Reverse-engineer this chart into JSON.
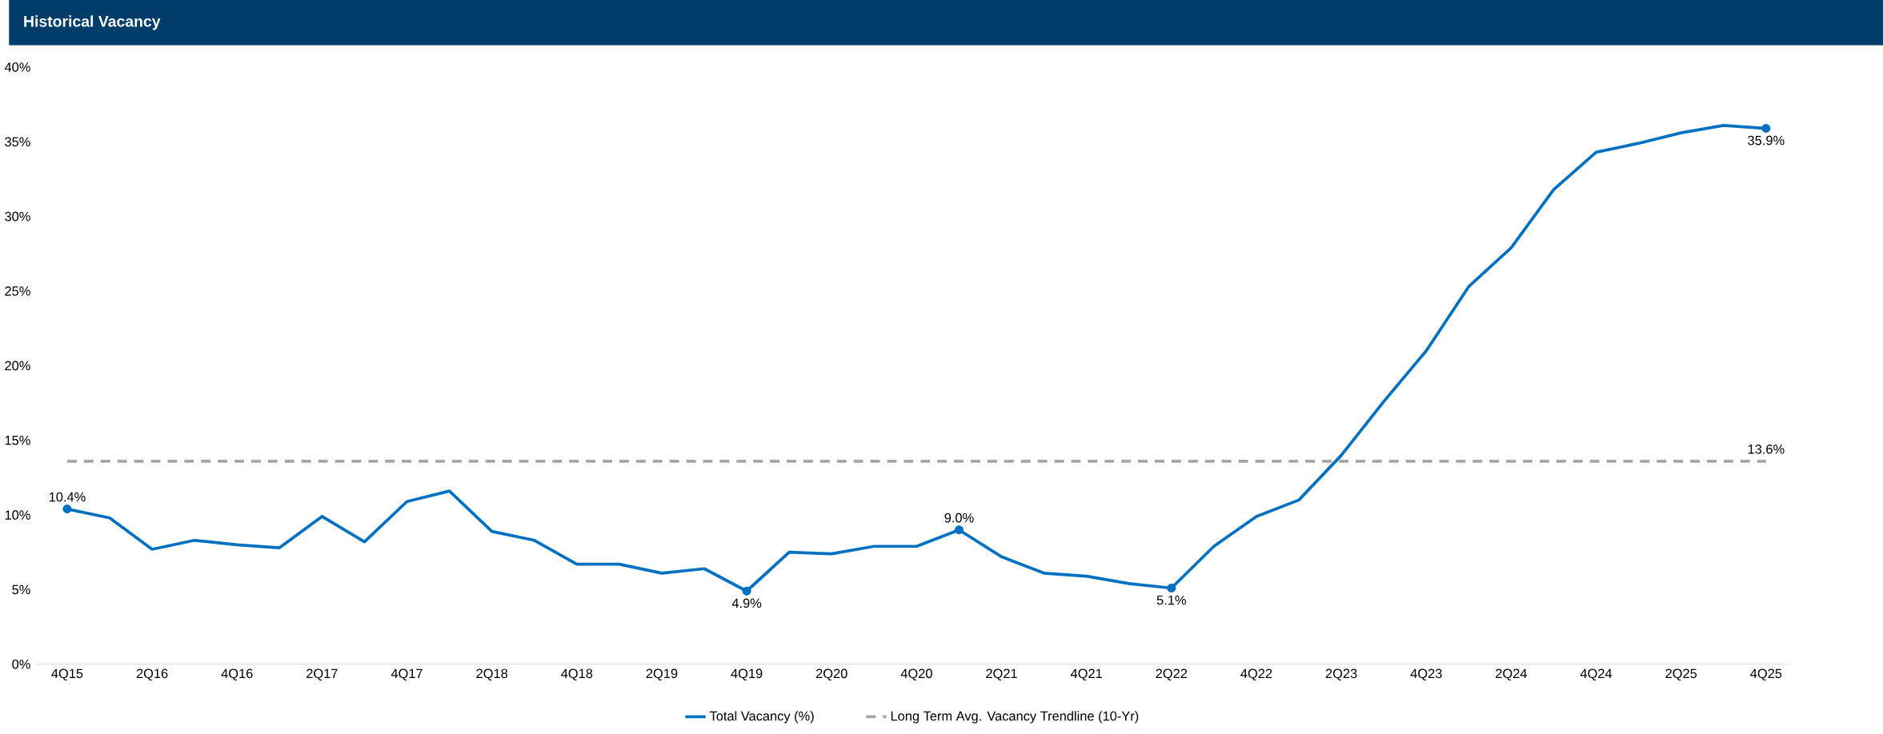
{
  "chart_data": {
    "type": "line",
    "title": "Historical Vacancy",
    "categories": [
      "4Q15",
      null,
      "2Q16",
      null,
      "4Q16",
      null,
      "2Q17",
      null,
      "4Q17",
      null,
      "2Q18",
      null,
      "4Q18",
      null,
      "2Q19",
      null,
      "4Q19",
      null,
      "2Q20",
      null,
      "4Q20",
      null,
      "2Q21",
      null,
      "4Q21",
      null,
      "2Q22",
      null,
      "4Q22",
      null,
      "2Q23",
      null,
      "4Q23",
      null,
      "2Q24",
      null,
      "4Q24",
      null,
      "2Q25",
      null,
      "4Q25"
    ],
    "series": [
      {
        "name": "Total Vacancy (%)",
        "color": "#0070c0",
        "line_style": "solid",
        "values": [
          10.4,
          9.8,
          7.7,
          8.3,
          8.0,
          7.8,
          9.9,
          8.2,
          10.9,
          11.6,
          8.9,
          8.3,
          6.7,
          6.7,
          6.1,
          6.4,
          4.9,
          7.5,
          7.4,
          7.9,
          7.9,
          9.0,
          7.2,
          6.1,
          5.9,
          5.4,
          5.1,
          7.9,
          9.9,
          11.0,
          14.0,
          17.6,
          21.0,
          25.3,
          27.9,
          31.8,
          34.3,
          34.9,
          35.6,
          36.1,
          35.9
        ],
        "value_labels": [
          "10.4%",
          null,
          null,
          null,
          null,
          null,
          null,
          null,
          null,
          null,
          null,
          null,
          null,
          null,
          null,
          null,
          "4.9%",
          null,
          null,
          null,
          null,
          "9.0%",
          null,
          null,
          null,
          null,
          "5.1%",
          null,
          null,
          null,
          null,
          null,
          null,
          null,
          null,
          null,
          null,
          null,
          null,
          null,
          "35.9%"
        ]
      },
      {
        "name": "Long Term Avg. Vacancy Trendline (10-Yr)",
        "color": "#a6a6a6",
        "line_style": "dashed",
        "values": [
          13.6,
          13.6,
          13.6,
          13.6,
          13.6,
          13.6,
          13.6,
          13.6,
          13.6,
          13.6,
          13.6,
          13.6,
          13.6,
          13.6,
          13.6,
          13.6,
          13.6,
          13.6,
          13.6,
          13.6,
          13.6,
          13.6,
          13.6,
          13.6,
          13.6,
          13.6,
          13.6,
          13.6,
          13.6,
          13.6,
          13.6,
          13.6,
          13.6,
          13.6,
          13.6,
          13.6,
          13.6,
          13.6,
          13.6,
          13.6,
          13.6
        ],
        "value_labels": [
          null,
          null,
          null,
          null,
          null,
          null,
          null,
          null,
          null,
          null,
          null,
          null,
          null,
          null,
          null,
          null,
          null,
          null,
          null,
          null,
          null,
          null,
          null,
          null,
          null,
          null,
          null,
          null,
          null,
          null,
          null,
          null,
          null,
          null,
          null,
          null,
          null,
          null,
          null,
          null,
          "13.6%"
        ]
      }
    ],
    "ylim": [
      0,
      40
    ],
    "yticks": [
      {
        "value": 0,
        "label": "0%"
      },
      {
        "value": 5,
        "label": "5%"
      },
      {
        "value": 10,
        "label": "10%"
      },
      {
        "value": 15,
        "label": "15%"
      },
      {
        "value": 20,
        "label": "20%"
      },
      {
        "value": 25,
        "label": "25%"
      },
      {
        "value": 30,
        "label": "30%"
      },
      {
        "value": 35,
        "label": "35%"
      },
      {
        "value": 40,
        "label": "40%"
      }
    ],
    "grid": false,
    "legend": "bottom"
  }
}
